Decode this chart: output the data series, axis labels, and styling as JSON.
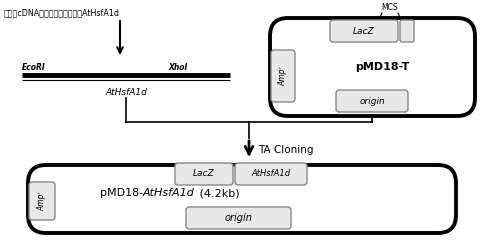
{
  "bg_color": "#ffffff",
  "fig_width": 4.83,
  "fig_height": 2.41,
  "dpi": 100,
  "chinese_text": "拟南芥cDNA第一条链为模板扩增AtHsfA1d",
  "ecori_label": "EcoRI",
  "xhoi_label": "XhoI",
  "gene_label": "AtHsfA1d",
  "ta_cloning_label": "TA Cloning",
  "pmd18t_label": "pMD18-T",
  "mcs_label": "MCS",
  "lacz_label_top": "LacZ",
  "ampr_label_top": "Ampʳ",
  "origin_label_top": "origin",
  "lacz_label_bot": "LacZ",
  "athsfa1d_label_bot": "AtHsfA1d",
  "ampr_label_bot": "Ampʳ",
  "origin_label_bot": "origin"
}
